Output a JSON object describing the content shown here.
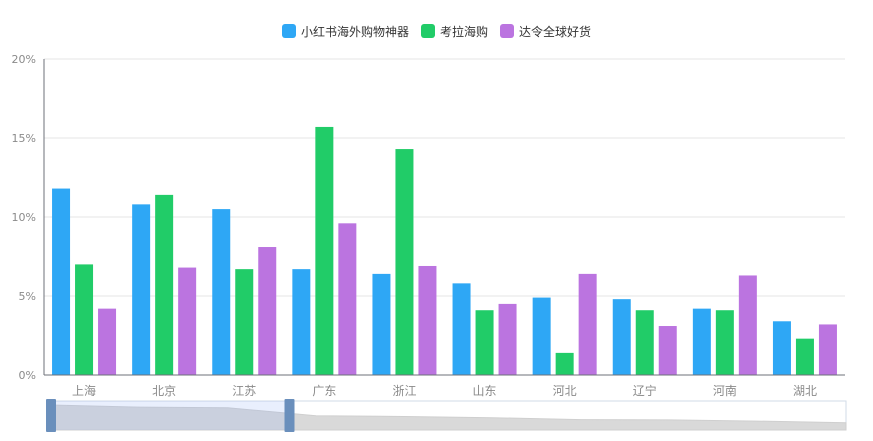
{
  "chart_data": {
    "type": "bar",
    "categories": [
      "上海",
      "北京",
      "江苏",
      "广东",
      "浙江",
      "山东",
      "河北",
      "辽宁",
      "河南",
      "湖北"
    ],
    "series": [
      {
        "name": "小红书海外购物神器",
        "color": "#2ea7f5",
        "values": [
          11.8,
          10.8,
          10.5,
          6.7,
          6.4,
          5.8,
          4.9,
          4.8,
          4.2,
          3.4
        ]
      },
      {
        "name": "考拉海购",
        "color": "#21cc68",
        "values": [
          7.0,
          11.4,
          6.7,
          15.7,
          14.3,
          4.1,
          1.4,
          4.1,
          4.1,
          2.3
        ]
      },
      {
        "name": "达令全球好货",
        "color": "#bb74e0",
        "values": [
          4.2,
          6.8,
          8.1,
          9.6,
          6.9,
          4.5,
          6.4,
          3.1,
          6.3,
          3.2
        ]
      }
    ],
    "ylim": [
      0,
      20
    ],
    "yticks": [
      0,
      5,
      10,
      15,
      20
    ],
    "ytick_labels": [
      "0%",
      "5%",
      "10%",
      "15%",
      "20%"
    ],
    "ylabel": "",
    "xlabel": "",
    "title": "",
    "grid": true,
    "legend": "top-center",
    "datazoom": {
      "range_percent": [
        0,
        30
      ],
      "preview_values": [
        11.8,
        10.8,
        10.5,
        6.7,
        6.4,
        5.8,
        4.9,
        4.8,
        4.2,
        3.4
      ]
    }
  }
}
